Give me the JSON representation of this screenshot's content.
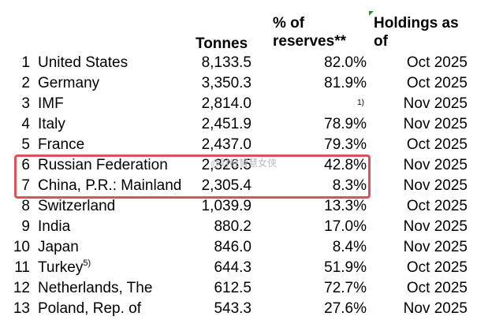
{
  "headers": {
    "tonnes": "Tonnes",
    "pct_line1": "% of",
    "pct_line2": "reserves**",
    "holdings_line1": "Holdings as",
    "holdings_line2": "of"
  },
  "rows": [
    {
      "rank": "1",
      "country": "United States",
      "sup": "",
      "tonnes": "8,133.5",
      "pct": "82.0%",
      "date": "Oct 2025"
    },
    {
      "rank": "2",
      "country": "Germany",
      "sup": "",
      "tonnes": "3,350.3",
      "pct": "81.9%",
      "date": "Oct 2025"
    },
    {
      "rank": "3",
      "country": "IMF",
      "sup": "",
      "tonnes": "2,814.0",
      "pct": "1)",
      "date": "Nov 2025"
    },
    {
      "rank": "4",
      "country": "Italy",
      "sup": "",
      "tonnes": "2,451.9",
      "pct": "78.9%",
      "date": "Nov 2025"
    },
    {
      "rank": "5",
      "country": "France",
      "sup": "",
      "tonnes": "2,437.0",
      "pct": "79.3%",
      "date": "Oct 2025"
    },
    {
      "rank": "6",
      "country": "Russian Federation",
      "sup": "",
      "tonnes": "2,326.5",
      "pct": "42.8%",
      "date": "Nov 2025"
    },
    {
      "rank": "7",
      "country": "China, P.R.: Mainland",
      "sup": "",
      "tonnes": "2,305.4",
      "pct": "8.3%",
      "date": "Nov 2025"
    },
    {
      "rank": "8",
      "country": "Switzerland",
      "sup": "",
      "tonnes": "1,039.9",
      "pct": "13.3%",
      "date": "Oct 2025"
    },
    {
      "rank": "9",
      "country": "India",
      "sup": "",
      "tonnes": "880.2",
      "pct": "17.0%",
      "date": "Nov 2025"
    },
    {
      "rank": "10",
      "country": "Japan",
      "sup": "",
      "tonnes": "846.0",
      "pct": "8.4%",
      "date": "Nov 2025"
    },
    {
      "rank": "11",
      "country": "Turkey",
      "sup": "5)",
      "tonnes": "644.3",
      "pct": "51.9%",
      "date": "Oct 2025"
    },
    {
      "rank": "12",
      "country": "Netherlands, The",
      "sup": "",
      "tonnes": "612.5",
      "pct": "72.7%",
      "date": "Oct 2025"
    },
    {
      "rank": "13",
      "country": "Poland, Rep. of",
      "sup": "",
      "tonnes": "543.3",
      "pct": "27.6%",
      "date": "Nov 2025"
    }
  ],
  "watermark": "@财经智慧女侠",
  "colors": {
    "highlight_border": "#e0505a",
    "corner_mark": "#2e8b3a",
    "watermark": "#b9b9b9"
  }
}
